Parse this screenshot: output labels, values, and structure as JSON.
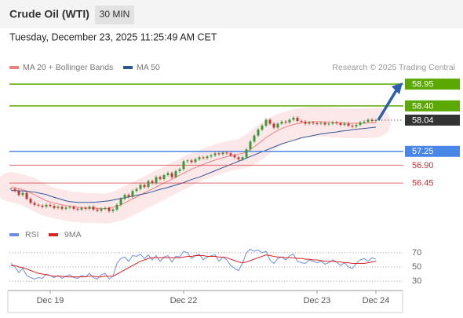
{
  "header": {
    "title": "Crude Oil (WTI)",
    "timeframe": "30 MIN",
    "timestamp": "Tuesday, December 23, 2025 11:25:49 AM CET",
    "source": "Research © 2025 Trading Central"
  },
  "chart_data": [
    {
      "type": "candlestick",
      "values": [
        56.3,
        56.25,
        56.15,
        56.2,
        56.05,
        55.95,
        55.9,
        55.88,
        55.85,
        55.9,
        55.87,
        55.82,
        55.85,
        55.8,
        55.83,
        55.85,
        55.8,
        55.78,
        55.82,
        55.8,
        55.85,
        55.78,
        55.75,
        55.8,
        55.82,
        55.74,
        55.78,
        55.9,
        56.05,
        56.15,
        56.1,
        56.25,
        56.3,
        56.4,
        56.35,
        56.5,
        56.45,
        56.6,
        56.55,
        56.65,
        56.7,
        56.6,
        56.75,
        56.8,
        57.0,
        57.02,
        56.98,
        57.05,
        57.1,
        57.08,
        57.12,
        57.15,
        57.2,
        57.18,
        57.22,
        57.2,
        57.15,
        57.1,
        57.05,
        57.1,
        57.3,
        57.5,
        57.65,
        57.8,
        57.9,
        58.05,
        57.95,
        57.85,
        57.95,
        58.0,
        57.98,
        58.05,
        58.1,
        58.02,
        58.0,
        57.95,
        57.98,
        57.96,
        57.95,
        57.97,
        57.93,
        57.95,
        57.98,
        57.96,
        57.92,
        57.95,
        57.9,
        57.88,
        57.92,
        57.98,
        58.0,
        58.05,
        58.02,
        58.04
      ],
      "up_color": "#3a9a3a",
      "down_color": "#cc3333",
      "series": [
        {
          "name": "MA 20 + Bollinger Bands",
          "color": "#f08080",
          "values": [
            56.35,
            56.33,
            56.3,
            56.28,
            56.25,
            56.2,
            56.15,
            56.1,
            56.05,
            56.0,
            55.97,
            55.94,
            55.92,
            55.9,
            55.88,
            55.86,
            55.85,
            55.84,
            55.83,
            55.82,
            55.82,
            55.82,
            55.81,
            55.81,
            55.8,
            55.82,
            55.84,
            55.86,
            55.9,
            55.95,
            56.0,
            56.05,
            56.1,
            56.15,
            56.2,
            56.25,
            56.3,
            56.35,
            56.4,
            56.45,
            56.5,
            56.55,
            56.6,
            56.65,
            56.7,
            56.75,
            56.8,
            56.84,
            56.88,
            56.92,
            56.96,
            57.0,
            57.03,
            57.06,
            57.09,
            57.12,
            57.14,
            57.16,
            57.18,
            57.2,
            57.24,
            57.3,
            57.37,
            57.44,
            57.52,
            57.6,
            57.66,
            57.72,
            57.78,
            57.83,
            57.87,
            57.9,
            57.93,
            57.95,
            57.97,
            57.98,
            57.99,
            58.0,
            58.0,
            58.0,
            57.99,
            57.99,
            57.98,
            57.98,
            57.97,
            57.97,
            57.96,
            57.96,
            57.96,
            57.96,
            57.96,
            57.97,
            57.97,
            57.98
          ]
        },
        {
          "name": "MA 50",
          "color": "#2f5597",
          "values": [
            56.26,
            56.26,
            56.25,
            56.25,
            56.24,
            56.23,
            56.22,
            56.2,
            56.18,
            56.16,
            56.12,
            56.09,
            56.06,
            56.03,
            56.0,
            55.98,
            55.97,
            55.96,
            55.96,
            55.96,
            55.96,
            55.96,
            55.97,
            55.98,
            55.99,
            56.0,
            56.02,
            56.04,
            56.06,
            56.08,
            56.1,
            56.12,
            56.14,
            56.16,
            56.18,
            56.2,
            56.23,
            56.26,
            56.29,
            56.31,
            56.34,
            56.37,
            56.4,
            56.43,
            56.46,
            56.5,
            56.54,
            56.57,
            56.6,
            56.64,
            56.68,
            56.72,
            56.76,
            56.8,
            56.84,
            56.88,
            56.92,
            56.96,
            57.0,
            57.04,
            57.08,
            57.12,
            57.16,
            57.2,
            57.24,
            57.28,
            57.32,
            57.36,
            57.4,
            57.44,
            57.47,
            57.5,
            57.53,
            57.56,
            57.59,
            57.61,
            57.63,
            57.65,
            57.67,
            57.69,
            57.7,
            57.72,
            57.73,
            57.74,
            57.76,
            57.77,
            57.78,
            57.8,
            57.81,
            57.82,
            57.83,
            57.84,
            57.85,
            57.86
          ]
        }
      ],
      "ylim": [
        55.42,
        59.29
      ],
      "levels": [
        {
          "value": 58.95,
          "label": "58.95",
          "color": "#5aa800"
        },
        {
          "value": 58.4,
          "label": "58.40",
          "color": "#5aa800"
        },
        {
          "value": 58.04,
          "label": "58.04",
          "color": "#333333"
        },
        {
          "value": 57.25,
          "label": "57.25",
          "color": "#4a86e8"
        },
        {
          "value": 56.9,
          "label": "56.90",
          "color": "#cc3333"
        },
        {
          "value": 56.45,
          "label": "56.45",
          "color": "#cc3333"
        }
      ]
    },
    {
      "type": "line",
      "x": [
        null,
        null,
        null,
        null,
        null,
        null,
        null,
        null,
        null,
        null,
        "Dec 19",
        null,
        null,
        null,
        null,
        null,
        null,
        null,
        null,
        null,
        null,
        null,
        null,
        null,
        null,
        null,
        null,
        null,
        null,
        null,
        null,
        null,
        null,
        null,
        null,
        null,
        null,
        null,
        null,
        null,
        null,
        null,
        null,
        null,
        "Dec 22",
        null,
        null,
        null,
        null,
        null,
        null,
        null,
        null,
        null,
        null,
        null,
        null,
        null,
        null,
        null,
        null,
        null,
        null,
        null,
        null,
        null,
        null,
        null,
        null,
        null,
        null,
        null,
        null,
        null,
        null,
        null,
        null,
        null,
        "Dec 23",
        null,
        null,
        null,
        null,
        null,
        null,
        null,
        null,
        null,
        null,
        null,
        null,
        null,
        null,
        "Dec 24"
      ],
      "series": [
        {
          "name": "RSI",
          "color": "#6a8fe0",
          "values": [
            55,
            50,
            42,
            48,
            38,
            35,
            33,
            35,
            34,
            40,
            38,
            35,
            38,
            34,
            37,
            39,
            35,
            34,
            38,
            36,
            41,
            35,
            33,
            39,
            41,
            33,
            37,
            55,
            62,
            64,
            58,
            66,
            65,
            68,
            62,
            67,
            60,
            66,
            58,
            64,
            66,
            57,
            65,
            64,
            72,
            70,
            62,
            66,
            68,
            60,
            64,
            66,
            67,
            58,
            64,
            60,
            52,
            48,
            45,
            55,
            70,
            75,
            72,
            74,
            70,
            72,
            60,
            55,
            62,
            64,
            60,
            66,
            68,
            58,
            56,
            55,
            60,
            58,
            56,
            58,
            54,
            56,
            60,
            57,
            52,
            56,
            50,
            48,
            55,
            60,
            62,
            58,
            63,
            61
          ]
        },
        {
          "name": "9MA",
          "color": "#dd2222",
          "values": [
            52,
            52,
            50,
            49,
            47,
            45,
            43,
            41,
            40,
            39,
            38,
            37,
            37,
            37,
            36,
            36,
            36,
            36,
            36,
            36,
            37,
            37,
            36,
            36,
            37,
            37,
            37,
            40,
            43,
            46,
            49,
            52,
            55,
            58,
            60,
            62,
            63,
            63,
            63,
            63,
            63,
            63,
            63,
            63,
            64,
            65,
            65,
            66,
            66,
            66,
            65,
            65,
            65,
            64,
            64,
            63,
            61,
            59,
            57,
            56,
            57,
            59,
            61,
            63,
            65,
            67,
            66,
            65,
            64,
            64,
            63,
            63,
            63,
            62,
            62,
            61,
            61,
            60,
            60,
            59,
            58,
            58,
            58,
            57,
            57,
            56,
            56,
            55,
            55,
            55,
            55,
            56,
            57,
            58
          ]
        }
      ],
      "ylim": [
        19,
        81
      ],
      "yticks": [
        70,
        50,
        30
      ]
    }
  ]
}
